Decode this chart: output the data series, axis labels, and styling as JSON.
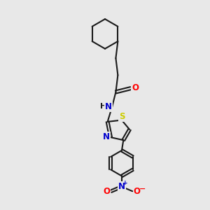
{
  "background_color": "#e8e8e8",
  "bond_color": "#1a1a1a",
  "atom_colors": {
    "O": "#ff0000",
    "N": "#0000cc",
    "S": "#cccc00",
    "H": "#1a1a1a",
    "C": "#1a1a1a"
  },
  "figsize": [
    3.0,
    3.0
  ],
  "dpi": 100
}
